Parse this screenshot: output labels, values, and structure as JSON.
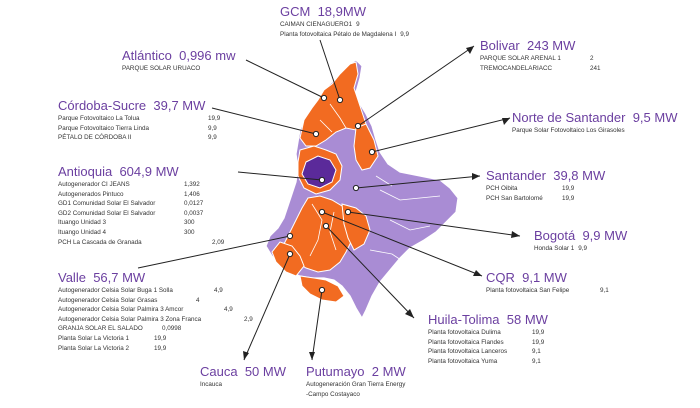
{
  "colors": {
    "purple": "#6b3fa0",
    "region_orange": "#f26b21",
    "region_lavender": "#a98cd4",
    "region_selected": "#5b2a9a",
    "leader": "#222222",
    "text": "#333333"
  },
  "regions": [
    {
      "id": "gcm",
      "name": "GCM",
      "capacity": "18,9MW",
      "items": [
        {
          "name": "CAIMAN CIENAGUERO1",
          "value": "9"
        },
        {
          "name": "Planta fotovoltaica Pétalo de Magdalena I",
          "value": "9,9"
        }
      ]
    },
    {
      "id": "atlantico",
      "name": "Atlántico",
      "capacity": "0,996 mw",
      "items": [
        {
          "name": "PARQUE SOLAR URUACO",
          "value": ""
        }
      ]
    },
    {
      "id": "bolivar",
      "name": "Bolivar",
      "capacity": "243 MW",
      "items": [
        {
          "name": "PARQUE SOLAR ARENAL 1",
          "value": "2"
        },
        {
          "name": "TREMOCANDELARIACC",
          "value": "241"
        }
      ]
    },
    {
      "id": "cordoba",
      "name": "Córdoba-Sucre",
      "capacity": "39,7 MW",
      "items": [
        {
          "name": "Parque Fotovoltaico La Tolua",
          "value": "19,9"
        },
        {
          "name": "Parque Fotovoltaico Tierra Linda",
          "value": "9,9"
        },
        {
          "name": "PÉTALO DE CÓRDOBA II",
          "value": "9,9"
        }
      ]
    },
    {
      "id": "norte",
      "name": "Norte de Santander",
      "capacity": "9,5 MW",
      "items": [
        {
          "name": "Parque Solar Fotovoltaico Los Girasoles",
          "value": ""
        }
      ]
    },
    {
      "id": "antioquia",
      "name": "Antioquia",
      "capacity": "604,9 MW",
      "items": [
        {
          "name": "Autogenerador CI JEANS",
          "value": "1,392"
        },
        {
          "name": "Autogenerados Pintuco",
          "value": "1,406"
        },
        {
          "name": "GD1 Comunidad Solar El Salvador",
          "value": "0,0127"
        },
        {
          "name": "GD2 Comunidad Solar El Salvador",
          "value": "0,0037"
        },
        {
          "name": "Ituango Unidad 3",
          "value": "300"
        },
        {
          "name": "Ituango Unidad 4",
          "value": "300"
        },
        {
          "name": "PCH La Cascada de Granada",
          "value": "2,09"
        }
      ]
    },
    {
      "id": "santander",
      "name": "Santander",
      "capacity": "39,8 MW",
      "items": [
        {
          "name": "PCH Oibita",
          "value": "19,9"
        },
        {
          "name": "PCH San Bartolomé",
          "value": "19,9"
        }
      ]
    },
    {
      "id": "bogota",
      "name": "Bogotá",
      "capacity": "9,9 MW",
      "items": [
        {
          "name": "Honda Solar 1",
          "value": "9,9"
        }
      ]
    },
    {
      "id": "cqr",
      "name": "CQR",
      "capacity": "9,1 MW",
      "items": [
        {
          "name": "Planta fotovoltaica San Felipe",
          "value": "9,1"
        }
      ]
    },
    {
      "id": "valle",
      "name": "Valle",
      "capacity": "56,7 MW",
      "items": [
        {
          "name": "Autogenerador Celsia Solar Buga 1 Solla",
          "value": "4,9"
        },
        {
          "name": "Autogenerador Celsia Solar Grasas",
          "value": "4"
        },
        {
          "name": "Autogenerador Celsia Solar Palmira 3 Amcor",
          "value": "4,9"
        },
        {
          "name": "Autogenerador Celsia Solar Palmira 3 Zona Franca",
          "value": "2,9"
        },
        {
          "name": "GRANJA SOLAR EL SALADO",
          "value": "0,0998"
        },
        {
          "name": "Planta Solar La Victoria 1",
          "value": "19,9"
        },
        {
          "name": "Planta Solar La Victoria 2",
          "value": "19,9"
        }
      ]
    },
    {
      "id": "huila",
      "name": "Huila-Tolima",
      "capacity": "58 MW",
      "items": [
        {
          "name": "Planta fotovoltaica Dulima",
          "value": "19,9"
        },
        {
          "name": "Planta fotovoltaica Flandes",
          "value": "19,9"
        },
        {
          "name": "Planta fotovoltaica Lanceros",
          "value": "9,1"
        },
        {
          "name": "Planta fotovoltaica Yuma",
          "value": "9,1"
        }
      ]
    },
    {
      "id": "cauca",
      "name": "Cauca",
      "capacity": "50 MW",
      "items": [
        {
          "name": "Incauca",
          "value": ""
        }
      ]
    },
    {
      "id": "putumayo",
      "name": "Putumayo",
      "capacity": "2 MW",
      "items": [
        {
          "name": "Autogeneración Gran Tierra Energy",
          "value": ""
        },
        {
          "name": "-Campo Costayaco",
          "value": ""
        }
      ]
    }
  ]
}
